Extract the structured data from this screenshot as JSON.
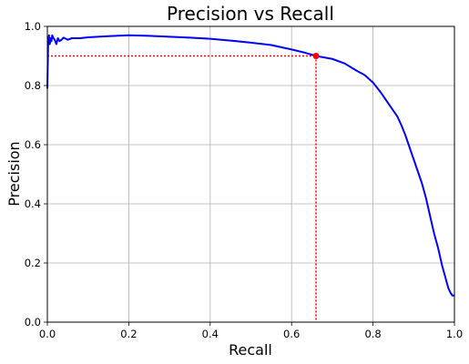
{
  "chart_data": {
    "type": "line",
    "title": "Precision vs Recall",
    "xlabel": "Recall",
    "ylabel": "Precision",
    "xlim": [
      0,
      1
    ],
    "ylim": [
      0,
      1
    ],
    "xticks": [
      "0.0",
      "0.2",
      "0.4",
      "0.6",
      "0.8",
      "1.0"
    ],
    "yticks": [
      "0.0",
      "0.2",
      "0.4",
      "0.6",
      "0.8",
      "1.0"
    ],
    "grid": true,
    "series": [
      {
        "color": "#0000ff",
        "x": [
          0.0,
          0.002,
          0.004,
          0.006,
          0.008,
          0.01,
          0.012,
          0.015,
          0.018,
          0.022,
          0.026,
          0.03,
          0.035,
          0.04,
          0.05,
          0.06,
          0.08,
          0.1,
          0.15,
          0.2,
          0.25,
          0.3,
          0.35,
          0.4,
          0.45,
          0.5,
          0.55,
          0.6,
          0.63,
          0.66,
          0.7,
          0.73,
          0.76,
          0.78,
          0.8,
          0.82,
          0.84,
          0.86,
          0.87,
          0.88,
          0.89,
          0.9,
          0.91,
          0.92,
          0.93,
          0.94,
          0.95,
          0.96,
          0.97,
          0.98,
          0.985,
          0.99,
          0.995,
          1.0
        ],
        "y": [
          0.79,
          0.95,
          0.97,
          0.94,
          0.96,
          0.95,
          0.97,
          0.96,
          0.955,
          0.94,
          0.96,
          0.95,
          0.955,
          0.962,
          0.955,
          0.96,
          0.96,
          0.963,
          0.967,
          0.97,
          0.968,
          0.965,
          0.962,
          0.958,
          0.952,
          0.945,
          0.937,
          0.922,
          0.912,
          0.9,
          0.89,
          0.875,
          0.85,
          0.835,
          0.81,
          0.775,
          0.735,
          0.695,
          0.665,
          0.63,
          0.59,
          0.55,
          0.51,
          0.47,
          0.42,
          0.36,
          0.3,
          0.25,
          0.19,
          0.14,
          0.115,
          0.1,
          0.09,
          0.09
        ]
      }
    ],
    "threshold_point": {
      "x": 0.66,
      "y": 0.9,
      "color": "#ff0000"
    }
  }
}
